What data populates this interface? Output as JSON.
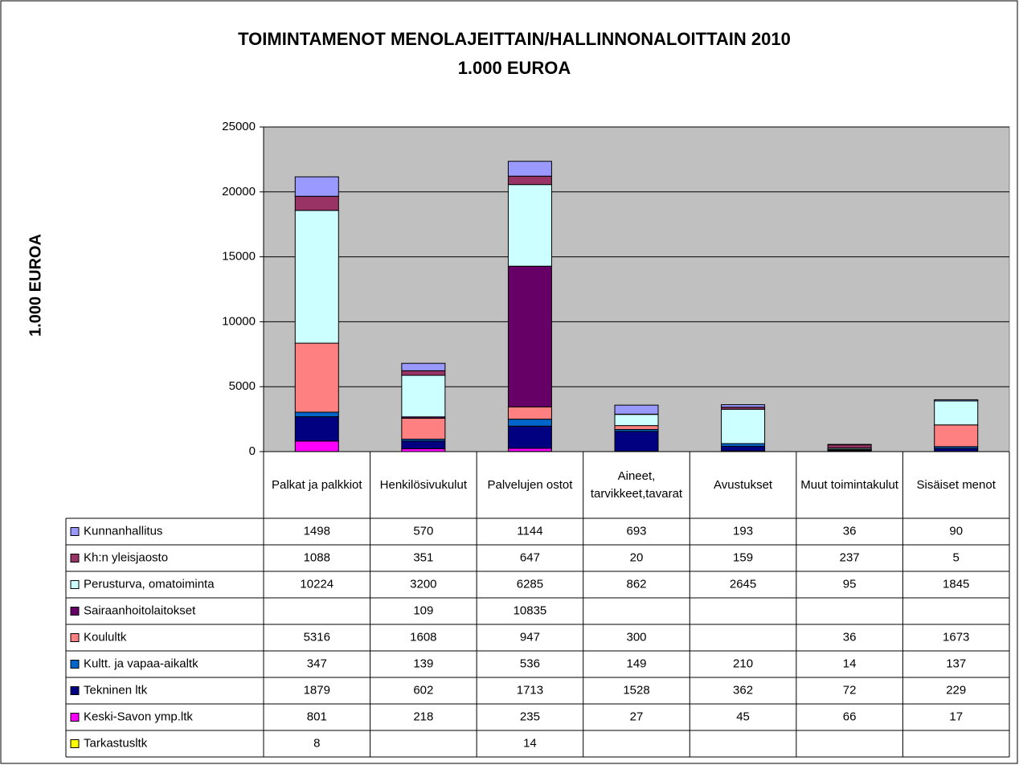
{
  "chart_data": {
    "type": "stacked_bar",
    "title": "TOIMINTAMENOT MENOLAJEITTAIN/HALLINNONALOITTAIN  2010",
    "subtitle": "1.000 EUROA",
    "y_label": "1.000 EUROA",
    "categories": [
      "Palkat ja palkkiot",
      "Henkilösivukulut",
      "Palvelujen ostot",
      "Aineet, tarvikkeet,tavarat",
      "Avustukset",
      "Muut toimintakulut",
      "Sisäiset menot"
    ],
    "series": [
      {
        "name": "Kunnanhallitus",
        "color": "#9999ff",
        "values": [
          1498,
          570,
          1144,
          693,
          193,
          36,
          90
        ]
      },
      {
        "name": "Kh:n yleisjaosto",
        "color": "#993366",
        "values": [
          1088,
          351,
          647,
          20,
          159,
          237,
          5
        ]
      },
      {
        "name": "Perusturva, omatoiminta",
        "color": "#ccffff",
        "values": [
          10224,
          3200,
          6285,
          862,
          2645,
          95,
          1845
        ]
      },
      {
        "name": "Sairaanhoitolaitokset",
        "color": "#660066",
        "values": [
          null,
          109,
          10835,
          null,
          null,
          null,
          null
        ]
      },
      {
        "name": "Koulultk",
        "color": "#ff8080",
        "values": [
          5316,
          1608,
          947,
          300,
          null,
          36,
          1673
        ]
      },
      {
        "name": "Kultt. ja vapaa-aikaltk",
        "color": "#0066cc",
        "values": [
          347,
          139,
          536,
          149,
          210,
          14,
          137
        ]
      },
      {
        "name": "Tekninen ltk",
        "color": "#000080",
        "values": [
          1879,
          602,
          1713,
          1528,
          362,
          72,
          229
        ]
      },
      {
        "name": "Keski-Savon ymp.ltk",
        "color": "#ff00ff",
        "values": [
          801,
          218,
          235,
          27,
          45,
          66,
          17
        ]
      },
      {
        "name": "Tarkastusltk",
        "color": "#ffff00",
        "values": [
          8,
          null,
          14,
          null,
          null,
          null,
          null
        ]
      }
    ],
    "ylim": [
      0,
      25000
    ],
    "yticks": [
      0,
      5000,
      10000,
      15000,
      20000,
      25000
    ],
    "grid": true,
    "plot_background": "#c0c0c0"
  }
}
